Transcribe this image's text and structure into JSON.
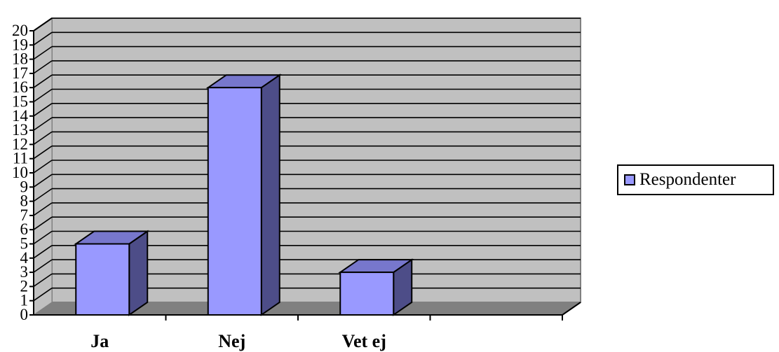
{
  "chart_data": {
    "type": "bar",
    "style": "3d-column",
    "categories": [
      "Ja",
      "Nej",
      "Vet ej"
    ],
    "series": [
      {
        "name": "Respondenter",
        "values": [
          5,
          16,
          3
        ]
      }
    ],
    "ylim": [
      0,
      20
    ],
    "yticks": [
      "0",
      "1",
      "2",
      "3",
      "4",
      "5",
      "6",
      "7",
      "8",
      "9",
      "10",
      "11",
      "12",
      "13",
      "14",
      "15",
      "16",
      "17",
      "18",
      "19",
      "20"
    ],
    "grid": true,
    "legend_position": "right",
    "colors": {
      "bar_front": "#9999ff",
      "bar_top": "#7777cc",
      "bar_side": "#4d4d88",
      "back_wall": "#c0c0c0",
      "floor": "#808080",
      "gridline": "#000000"
    }
  }
}
